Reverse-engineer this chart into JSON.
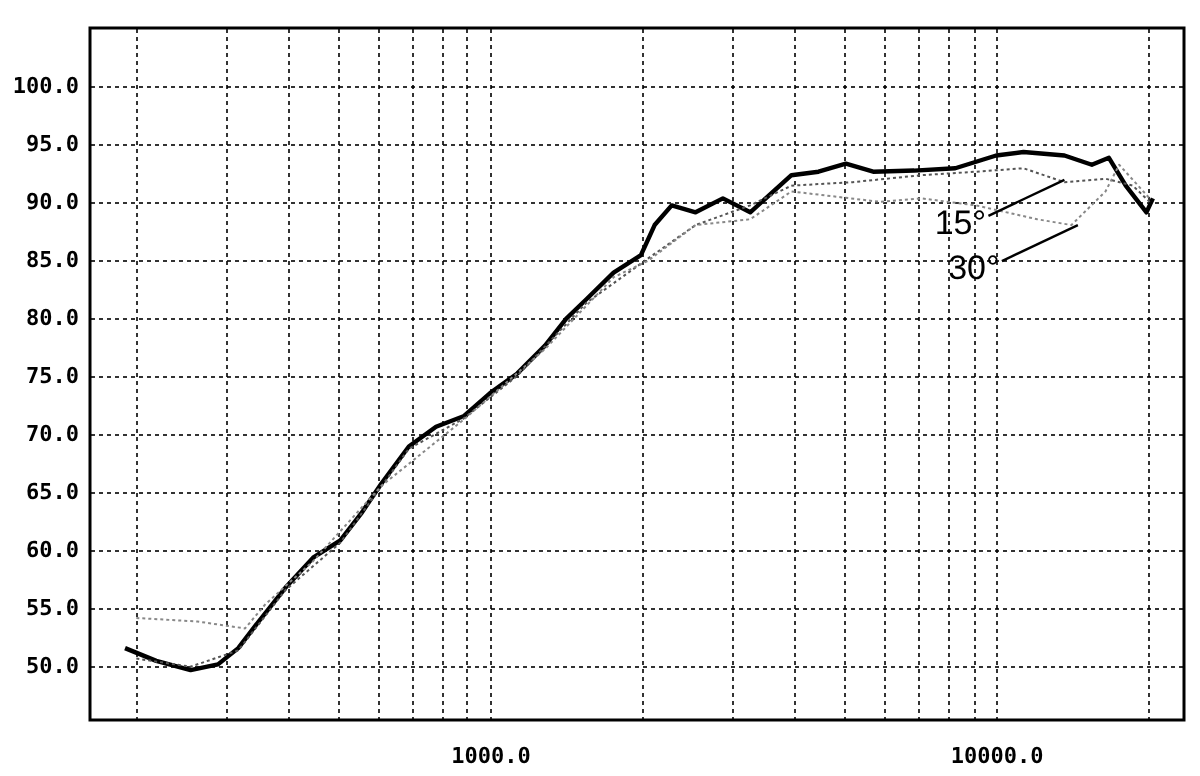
{
  "chart_data": {
    "type": "line",
    "xlim": [
      162,
      23500
    ],
    "ylim": [
      45.3,
      105
    ],
    "xticks": [
      {
        "value": 200,
        "label": null
      },
      {
        "value": 300,
        "label": null
      },
      {
        "value": 400,
        "label": null
      },
      {
        "value": 500,
        "label": null
      },
      {
        "value": 600,
        "label": null
      },
      {
        "value": 700,
        "label": null
      },
      {
        "value": 800,
        "label": null
      },
      {
        "value": 900,
        "label": null
      },
      {
        "value": 1000,
        "label": "1000.0"
      },
      {
        "value": 2000,
        "label": null
      },
      {
        "value": 3000,
        "label": null
      },
      {
        "value": 4000,
        "label": null
      },
      {
        "value": 5000,
        "label": null
      },
      {
        "value": 6000,
        "label": null
      },
      {
        "value": 7000,
        "label": null
      },
      {
        "value": 8000,
        "label": null
      },
      {
        "value": 9000,
        "label": null
      },
      {
        "value": 10000,
        "label": "10000.0"
      },
      {
        "value": 20000,
        "label": null
      }
    ],
    "yticks": [
      {
        "value": 50,
        "label": "50.0"
      },
      {
        "value": 55,
        "label": "55.0"
      },
      {
        "value": 60,
        "label": "60.0"
      },
      {
        "value": 65,
        "label": "65.0"
      },
      {
        "value": 70,
        "label": "70.0"
      },
      {
        "value": 75,
        "label": "75.0"
      },
      {
        "value": 80,
        "label": "80.0"
      },
      {
        "value": 85,
        "label": "85.0"
      },
      {
        "value": 90,
        "label": "90.0"
      },
      {
        "value": 95,
        "label": "95.0"
      },
      {
        "value": 100,
        "label": "100.0"
      }
    ],
    "log": "x",
    "grid": true,
    "marker": "none",
    "series": [
      {
        "color": "#000000",
        "line_style": "solid",
        "x": [
          190,
          219,
          256,
          290,
          318,
          349,
          394,
          447,
          506,
          556,
          610,
          691,
          782,
          886,
          1000,
          1132,
          1284,
          1413,
          1550,
          1754,
          1986,
          2114,
          2285,
          2547,
          2884,
          3266,
          3939,
          4455,
          5047,
          5715,
          6887,
          8300,
          10000,
          11320,
          13640,
          15450,
          16700,
          18030,
          19810,
          20400
        ],
        "values": [
          51.5,
          50.4,
          49.6,
          50.1,
          51.5,
          53.8,
          56.7,
          59.3,
          60.8,
          63.1,
          65.7,
          68.9,
          70.6,
          71.5,
          73.5,
          75.2,
          77.6,
          79.9,
          81.6,
          83.9,
          85.4,
          88.0,
          89.7,
          89.1,
          90.3,
          89.1,
          92.3,
          92.6,
          93.3,
          92.6,
          92.7,
          92.9,
          94.0,
          94.3,
          94.0,
          93.2,
          93.8,
          91.4,
          89.1,
          90.3
        ]
      },
      {
        "color": "#555555",
        "line_style": "dotted",
        "x": [
          200,
          256,
          318,
          394,
          506,
          691,
          886,
          1132,
          1550,
          2049,
          2547,
          3266,
          3939,
          5207,
          7110,
          9113,
          11320,
          13640,
          16440,
          18620,
          20100
        ],
        "values": [
          50.6,
          49.9,
          51.3,
          56.5,
          60.6,
          68.7,
          71.3,
          75.0,
          81.3,
          85.1,
          88.0,
          89.7,
          91.4,
          91.7,
          92.3,
          92.6,
          92.9,
          91.7,
          92.0,
          91.4,
          90.0
        ]
      },
      {
        "color": "#888888",
        "line_style": "dotted",
        "x": [
          200,
          264,
          328,
          360,
          447,
          610,
          886,
          1284,
          1754,
          2049,
          2547,
          3266,
          3939,
          5902,
          7110,
          9113,
          12050,
          14080,
          16440,
          17500,
          20100
        ],
        "values": [
          54.1,
          53.8,
          53.2,
          55.3,
          59.0,
          65.5,
          71.2,
          77.3,
          83.5,
          84.9,
          88.0,
          88.5,
          90.9,
          90.0,
          90.3,
          89.7,
          88.5,
          88.0,
          90.9,
          93.2,
          90.3
        ]
      }
    ],
    "annotations": [
      {
        "text": "15°",
        "x": 13640,
        "y": 91.9
      },
      {
        "text": "30°",
        "x": 14500,
        "y": 88.0
      }
    ]
  }
}
